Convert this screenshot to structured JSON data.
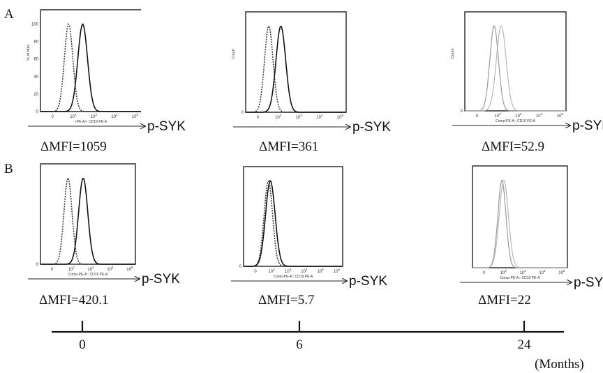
{
  "panels": {
    "a": "A",
    "b": "B"
  },
  "marker_label": "p-SYK",
  "colors": {
    "outer": "#222222",
    "dotted": "#333333",
    "solid": "#111111",
    "light": "#9a9a9a",
    "lighter": "#b8b8b8"
  },
  "chart_data": [
    {
      "type": "line",
      "row": "A",
      "col": 0,
      "ylabel": "% of Max",
      "xlabel": "<PE-A>: CD19 PE-A",
      "x_ticks": [
        "0",
        "10^2",
        "10^3",
        "10^4",
        "10^5"
      ],
      "y_ticks": [
        "0",
        "20",
        "40",
        "60",
        "80",
        "100"
      ],
      "delta_mfi": "ΔMFI=1059",
      "series": [
        {
          "style": "dotted",
          "peak_x": 0.28
        },
        {
          "style": "solid",
          "peak_x": 0.42
        }
      ]
    },
    {
      "type": "line",
      "row": "A",
      "col": 1,
      "ylabel": "Count",
      "xlabel": "",
      "x_ticks": [
        "0",
        "10^2",
        "10^3",
        "10^4",
        "10^5"
      ],
      "y_ticks": [
        "0"
      ],
      "delta_mfi": "ΔMFI=361",
      "series": [
        {
          "style": "dotted",
          "peak_x": 0.23
        },
        {
          "style": "solid",
          "peak_x": 0.35
        }
      ]
    },
    {
      "type": "line",
      "row": "A",
      "col": 2,
      "ylabel": "Count",
      "xlabel": "Comp-PE-A:: CD19 PE-A",
      "x_ticks": [
        "0",
        "10^2",
        "10^3",
        "10^4",
        "10^5"
      ],
      "y_ticks": [
        "0"
      ],
      "delta_mfi": "ΔMFI=52.9",
      "series": [
        {
          "style": "light",
          "peak_x": 0.29
        },
        {
          "style": "lighter",
          "peak_x": 0.36
        }
      ]
    },
    {
      "type": "line",
      "row": "B",
      "col": 0,
      "ylabel": "",
      "xlabel": "Comp-PE-A:: CD19 PE-A",
      "x_ticks": [
        "0",
        "10^2",
        "10^3",
        "10^4",
        "10^5"
      ],
      "y_ticks": [
        "0"
      ],
      "delta_mfi": "ΔMFI=420.1",
      "series": [
        {
          "style": "dotted",
          "peak_x": 0.29
        },
        {
          "style": "solid",
          "peak_x": 0.45
        }
      ]
    },
    {
      "type": "line",
      "row": "B",
      "col": 1,
      "ylabel": "",
      "xlabel": "Comp-PE-A:: CD19 PE-A",
      "x_ticks": [
        "0",
        "10^2",
        "10^3",
        "10^4",
        "10^5",
        "10^6"
      ],
      "y_ticks": [
        "0"
      ],
      "delta_mfi": "ΔMFI=5.7",
      "series": [
        {
          "style": "dotted",
          "peak_x": 0.25
        },
        {
          "style": "solid",
          "peak_x": 0.27
        }
      ]
    },
    {
      "type": "line",
      "row": "B",
      "col": 2,
      "ylabel": "",
      "xlabel": "Comp-PE-A:: CD19 PE-A",
      "x_ticks": [
        "0",
        "10^2",
        "10^3",
        "10^4",
        "10^5"
      ],
      "y_ticks": [],
      "delta_mfi": "ΔMFI=22",
      "series": [
        {
          "style": "light",
          "peak_x": 0.31
        },
        {
          "style": "lighter",
          "peak_x": 0.33
        }
      ]
    }
  ],
  "timeline": {
    "ticks": [
      "0",
      "6",
      "24"
    ],
    "unit_label": "(Months)"
  }
}
